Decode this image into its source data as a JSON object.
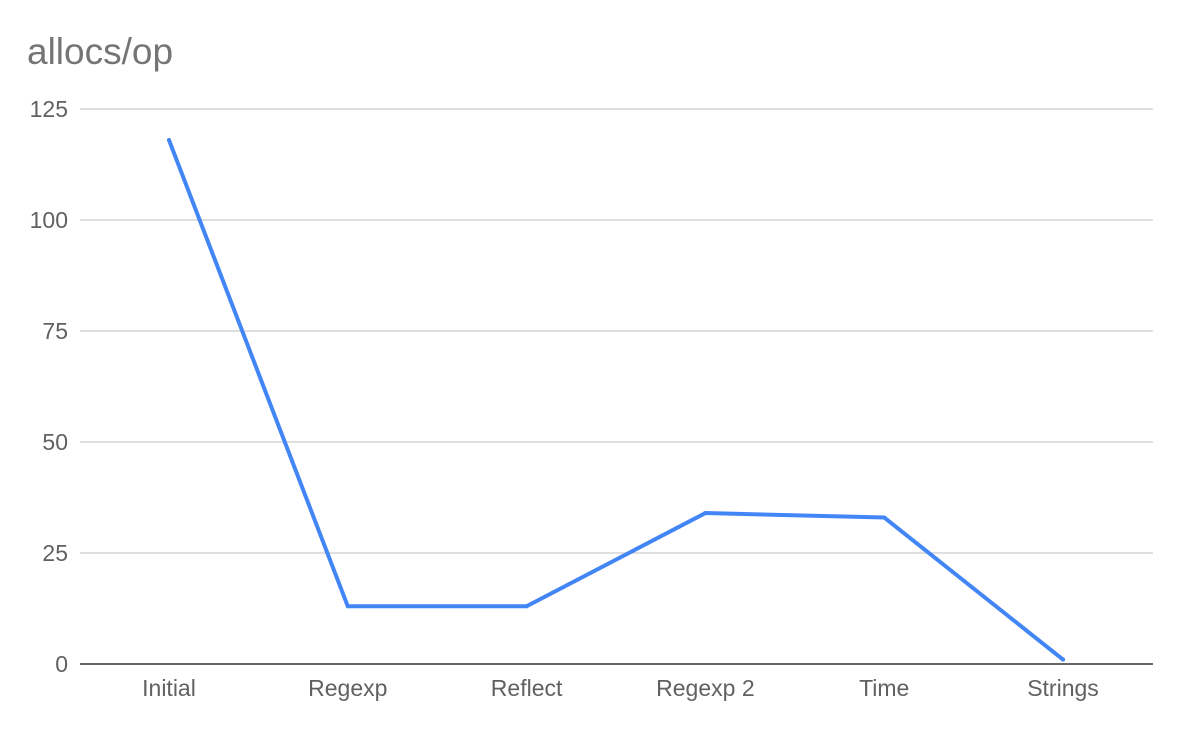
{
  "chart_data": {
    "type": "line",
    "title": "allocs/op",
    "xlabel": "",
    "ylabel": "",
    "categories": [
      "Initial",
      "Regexp",
      "Reflect",
      "Regexp 2",
      "Time",
      "Strings"
    ],
    "series": [
      {
        "values": [
          118,
          13,
          13,
          34,
          33,
          1
        ],
        "color": "#4285f4"
      }
    ],
    "ylim": [
      0,
      125
    ],
    "yticks": [
      0,
      25,
      50,
      75,
      100,
      125
    ],
    "grid": true,
    "legend": "none"
  }
}
